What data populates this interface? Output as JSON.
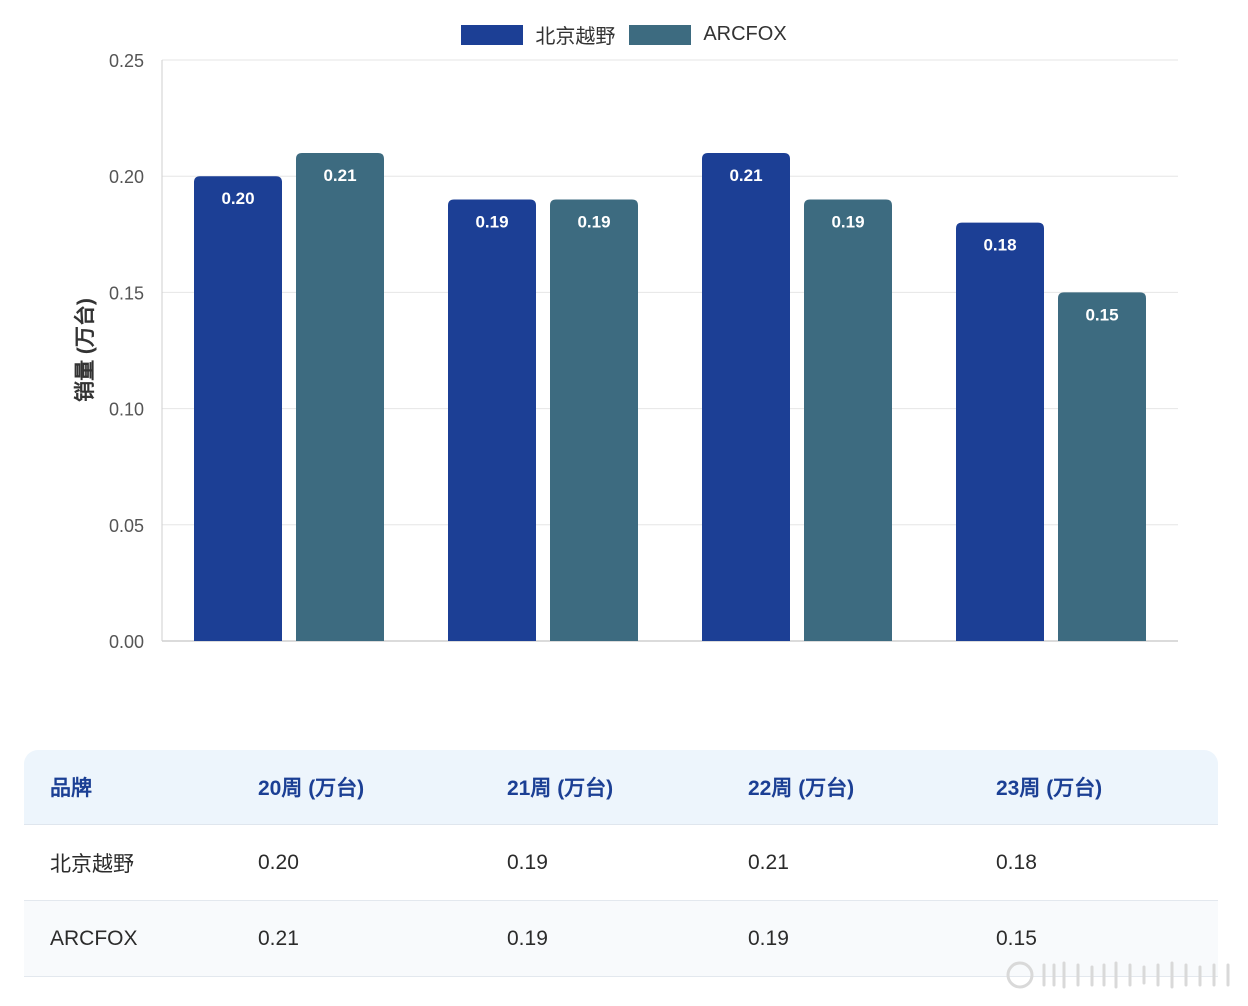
{
  "chart_data": {
    "type": "bar",
    "categories": [
      "20周",
      "21周",
      "22周",
      "23周"
    ],
    "series": [
      {
        "name": "北京越野",
        "values": [
          0.2,
          0.19,
          0.21,
          0.18
        ],
        "color": "#1c3f95"
      },
      {
        "name": "ARCFOX",
        "values": [
          0.21,
          0.19,
          0.19,
          0.15
        ],
        "color": "#3d6b80"
      }
    ],
    "ylabel": "销量 (万台)",
    "ylim": [
      0,
      0.25
    ],
    "yticks": [
      "0.00",
      "0.05",
      "0.10",
      "0.15",
      "0.20",
      "0.25"
    ],
    "grid": true,
    "legend": "top-center",
    "show_x_tick_labels": false
  },
  "table": {
    "headers": [
      "品牌",
      "20周 (万台)",
      "21周 (万台)",
      "22周 (万台)",
      "23周 (万台)"
    ],
    "rows": [
      [
        "北京越野",
        "0.20",
        "0.19",
        "0.21",
        "0.18"
      ],
      [
        "ARCFOX",
        "0.21",
        "0.19",
        "0.19",
        "0.15"
      ]
    ]
  },
  "colors": {
    "grid": "#e6e6e6",
    "axis": "#cfcfcf",
    "header_bg": "#edf5fc",
    "header_text": "#1b3f94"
  }
}
